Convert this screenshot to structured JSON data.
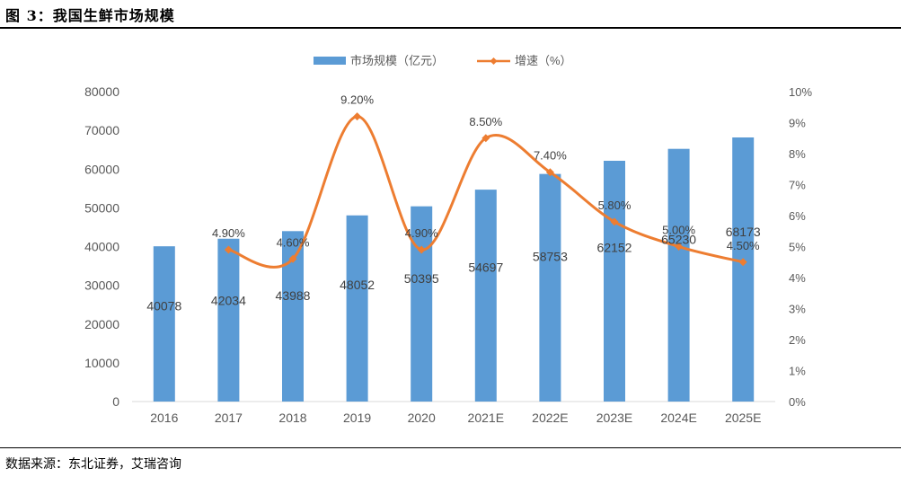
{
  "figure": {
    "title": "图 3：我国生鲜市场规模",
    "source": "数据来源：东北证券，艾瑞咨询"
  },
  "colors": {
    "bar": "#5b9bd5",
    "line": "#ed7d31",
    "axis_text": "#595959",
    "axis_line": "#d9d9d9"
  },
  "chart_data": {
    "type": "bar",
    "categories": [
      "2016",
      "2017",
      "2018",
      "2019",
      "2020",
      "2021E",
      "2022E",
      "2023E",
      "2024E",
      "2025E"
    ],
    "series": [
      {
        "name": "市场规模（亿元）",
        "type": "bar",
        "axis": "left",
        "values": [
          40078,
          42034,
          43988,
          48052,
          50395,
          54697,
          58753,
          62152,
          65230,
          68173
        ],
        "labels": [
          "40078",
          "42034",
          "43988",
          "48052",
          "50395",
          "54697",
          "58753",
          "62152",
          "65230",
          "68173"
        ]
      },
      {
        "name": "增速（%）",
        "type": "line",
        "axis": "right",
        "values": [
          null,
          4.9,
          4.6,
          9.2,
          4.9,
          8.5,
          7.4,
          5.8,
          5.0,
          4.5
        ],
        "labels": [
          null,
          "4.90%",
          "4.60%",
          "9.20%",
          "4.90%",
          "8.50%",
          "7.40%",
          "5.80%",
          "5.00%",
          "4.50%"
        ]
      }
    ],
    "y_left": {
      "lim": [
        0,
        80000
      ],
      "ticks": [
        "0",
        "10000",
        "20000",
        "30000",
        "40000",
        "50000",
        "60000",
        "70000",
        "80000"
      ]
    },
    "y_right": {
      "lim": [
        0,
        10
      ],
      "ticks": [
        "0%",
        "1%",
        "2%",
        "3%",
        "4%",
        "5%",
        "6%",
        "7%",
        "8%",
        "9%",
        "10%"
      ]
    },
    "legend_position": "top",
    "grid": false
  }
}
